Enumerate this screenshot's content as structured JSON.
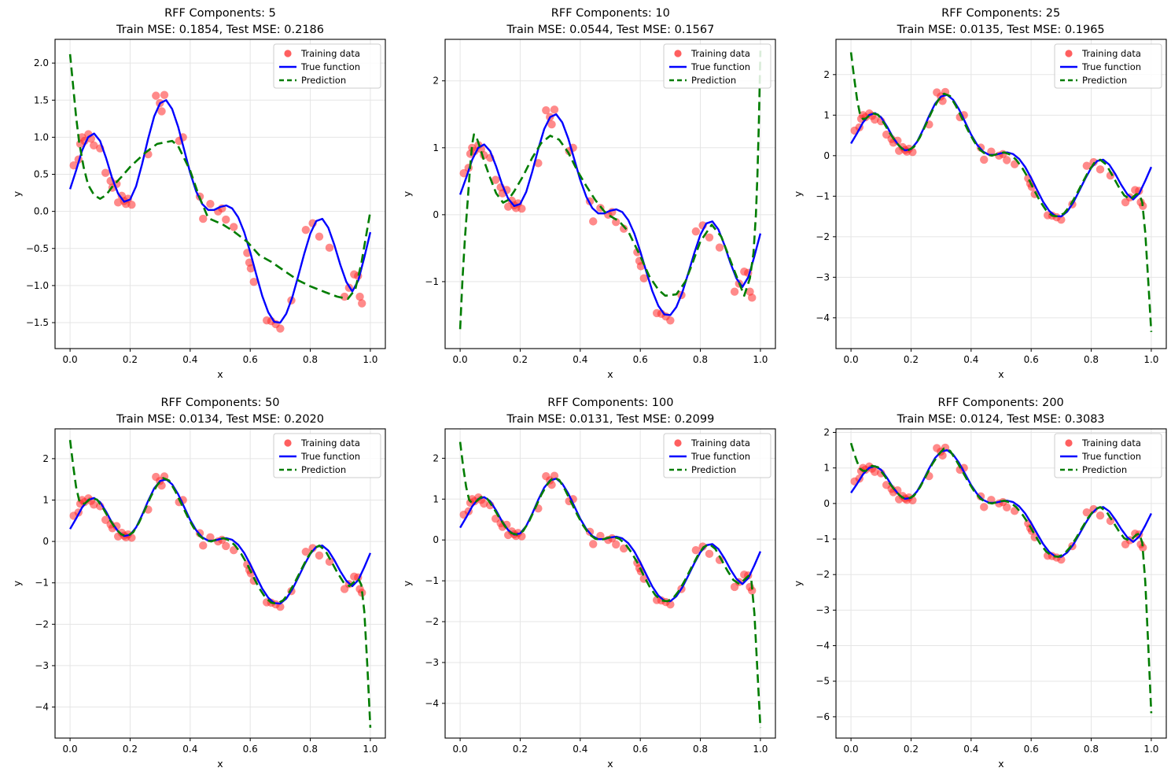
{
  "figure": {
    "background": "#ffffff"
  },
  "colors": {
    "training_data": "#ff2a2a",
    "training_alpha": 0.55,
    "true_function": "#0000ff",
    "prediction": "#007d00",
    "grid": "#e5e5e5",
    "spine": "#000000",
    "legend_border": "#cccccc"
  },
  "legend": {
    "items": [
      {
        "label": "Training data",
        "type": "scatter",
        "color": "#ff2a2a"
      },
      {
        "label": "True function",
        "type": "line",
        "color": "#0000ff"
      },
      {
        "label": "Prediction",
        "type": "dashed",
        "color": "#007d00"
      }
    ]
  },
  "axis_common": {
    "xlabel": "x",
    "ylabel": "y",
    "xlim": [
      -0.05,
      1.05
    ],
    "xticks": [
      0.0,
      0.2,
      0.4,
      0.6,
      0.8,
      1.0
    ],
    "xtick_labels": [
      "0.0",
      "0.2",
      "0.4",
      "0.6",
      "0.8",
      "1.0"
    ]
  },
  "shared_series": {
    "training_data": {
      "name": "Training data",
      "x": [
        0.012,
        0.028,
        0.034,
        0.04,
        0.048,
        0.061,
        0.07,
        0.079,
        0.1,
        0.118,
        0.135,
        0.141,
        0.155,
        0.16,
        0.172,
        0.18,
        0.186,
        0.193,
        0.205,
        0.26,
        0.286,
        0.299,
        0.305,
        0.314,
        0.363,
        0.376,
        0.432,
        0.443,
        0.467,
        0.493,
        0.506,
        0.519,
        0.545,
        0.59,
        0.597,
        0.602,
        0.612,
        0.655,
        0.67,
        0.685,
        0.7,
        0.737,
        0.785,
        0.808,
        0.83,
        0.864,
        0.914,
        0.929,
        0.946,
        0.959,
        0.965,
        0.972
      ],
      "y": [
        0.62,
        0.7,
        0.91,
        1.0,
        0.95,
        1.04,
        0.98,
        0.89,
        0.85,
        0.52,
        0.41,
        0.32,
        0.37,
        0.12,
        0.21,
        0.14,
        0.1,
        0.17,
        0.09,
        0.77,
        1.56,
        1.46,
        1.35,
        1.57,
        0.95,
        1.0,
        0.2,
        -0.1,
        0.1,
        0.0,
        0.04,
        -0.11,
        -0.21,
        -0.56,
        -0.69,
        -0.77,
        -0.95,
        -1.47,
        -1.48,
        -1.52,
        -1.58,
        -1.2,
        -0.25,
        -0.16,
        -0.34,
        -0.49,
        -1.15,
        -1.03,
        -0.85,
        -0.87,
        -1.15,
        -1.24
      ]
    },
    "true_function": {
      "name": "True function",
      "x": [
        0.0,
        0.02,
        0.04,
        0.06,
        0.08,
        0.1,
        0.12,
        0.14,
        0.16,
        0.18,
        0.2,
        0.22,
        0.24,
        0.26,
        0.28,
        0.3,
        0.32,
        0.34,
        0.36,
        0.38,
        0.4,
        0.42,
        0.44,
        0.46,
        0.48,
        0.5,
        0.52,
        0.54,
        0.56,
        0.58,
        0.6,
        0.62,
        0.64,
        0.66,
        0.68,
        0.7,
        0.72,
        0.74,
        0.76,
        0.78,
        0.8,
        0.82,
        0.84,
        0.86,
        0.88,
        0.9,
        0.92,
        0.94,
        0.96,
        0.98,
        1.0
      ],
      "y": [
        0.3,
        0.55,
        0.82,
        1.0,
        1.05,
        0.95,
        0.72,
        0.45,
        0.24,
        0.13,
        0.16,
        0.34,
        0.64,
        0.98,
        1.28,
        1.46,
        1.5,
        1.38,
        1.14,
        0.83,
        0.52,
        0.27,
        0.1,
        0.02,
        0.02,
        0.06,
        0.08,
        0.04,
        -0.08,
        -0.28,
        -0.55,
        -0.85,
        -1.14,
        -1.36,
        -1.49,
        -1.5,
        -1.38,
        -1.16,
        -0.87,
        -0.57,
        -0.3,
        -0.13,
        -0.1,
        -0.22,
        -0.45,
        -0.72,
        -0.95,
        -1.08,
        -0.93,
        -0.62,
        -0.28
      ]
    }
  },
  "chart_data": [
    {
      "type": "line",
      "title": "RFF Components: 5",
      "subtitle": "Train MSE: 0.1854, Test MSE: 0.2186",
      "components": 5,
      "train_mse": 0.1854,
      "test_mse": 0.2186,
      "ylim": [
        -1.85,
        2.32
      ],
      "yticks": [
        2.0,
        1.5,
        1.0,
        0.5,
        0.0,
        -0.5,
        -1.0,
        -1.5
      ],
      "ytick_labels": [
        "2.0",
        "1.5",
        "1.0",
        "0.5",
        "0.0",
        "−0.5",
        "−1.0",
        "−1.5"
      ],
      "prediction": {
        "name": "Prediction",
        "x": [
          0.0,
          0.01,
          0.02,
          0.03,
          0.045,
          0.06,
          0.08,
          0.1,
          0.12,
          0.14,
          0.17,
          0.2,
          0.25,
          0.29,
          0.34,
          0.36,
          0.4,
          0.43,
          0.46,
          0.51,
          0.545,
          0.59,
          0.63,
          0.67,
          0.72,
          0.76,
          0.8,
          0.85,
          0.89,
          0.925,
          0.95,
          0.97,
          0.985,
          1.0
        ],
        "y": [
          2.12,
          1.7,
          1.28,
          0.94,
          0.6,
          0.36,
          0.22,
          0.17,
          0.22,
          0.33,
          0.46,
          0.6,
          0.79,
          0.91,
          0.95,
          0.88,
          0.55,
          0.2,
          -0.09,
          -0.18,
          -0.27,
          -0.41,
          -0.59,
          -0.68,
          -0.82,
          -0.93,
          -1.01,
          -1.09,
          -1.15,
          -1.18,
          -1.05,
          -0.7,
          -0.35,
          0.0
        ]
      }
    },
    {
      "type": "line",
      "title": "RFF Components: 10",
      "subtitle": "Train MSE: 0.0544, Test MSE: 0.1567",
      "components": 10,
      "train_mse": 0.0544,
      "test_mse": 0.1567,
      "ylim": [
        -2.0,
        2.62
      ],
      "yticks": [
        2,
        1,
        0,
        -1
      ],
      "ytick_labels": [
        "2",
        "1",
        "0",
        "−1"
      ],
      "prediction": {
        "name": "Prediction",
        "x": [
          0.0,
          0.008,
          0.016,
          0.025,
          0.033,
          0.04,
          0.046,
          0.055,
          0.065,
          0.08,
          0.1,
          0.12,
          0.143,
          0.16,
          0.18,
          0.21,
          0.24,
          0.27,
          0.3,
          0.33,
          0.36,
          0.39,
          0.42,
          0.45,
          0.48,
          0.5,
          0.53,
          0.56,
          0.6,
          0.63,
          0.66,
          0.683,
          0.72,
          0.75,
          0.77,
          0.8,
          0.838,
          0.87,
          0.91,
          0.946,
          0.965,
          0.977,
          0.985,
          0.99,
          0.995,
          1.0
        ],
        "y": [
          -1.71,
          -0.95,
          -0.35,
          0.2,
          0.7,
          1.05,
          1.2,
          1.15,
          1.02,
          0.8,
          0.55,
          0.32,
          0.18,
          0.22,
          0.35,
          0.58,
          0.85,
          1.07,
          1.18,
          1.12,
          0.93,
          0.66,
          0.43,
          0.22,
          0.05,
          -0.02,
          -0.1,
          -0.25,
          -0.62,
          -0.92,
          -1.12,
          -1.21,
          -1.19,
          -1.0,
          -0.77,
          -0.4,
          -0.15,
          -0.33,
          -0.8,
          -1.21,
          -0.95,
          -0.57,
          0.0,
          0.58,
          1.4,
          2.45
        ]
      }
    },
    {
      "type": "line",
      "title": "RFF Components: 25",
      "subtitle": "Train MSE: 0.0135, Test MSE: 0.1965",
      "components": 25,
      "train_mse": 0.0135,
      "test_mse": 0.1965,
      "ylim": [
        -4.76,
        2.87
      ],
      "yticks": [
        2,
        1,
        0,
        -1,
        -2,
        -3,
        -4
      ],
      "ytick_labels": [
        "2",
        "1",
        "0",
        "−1",
        "−2",
        "−3",
        "−4"
      ],
      "prediction": {
        "name": "Prediction",
        "x": [
          0.0,
          0.01,
          0.02,
          0.03,
          0.04,
          0.05,
          0.07,
          0.09,
          0.11,
          0.13,
          0.15,
          0.17,
          0.19,
          0.21,
          0.23,
          0.25,
          0.27,
          0.29,
          0.31,
          0.33,
          0.35,
          0.37,
          0.39,
          0.41,
          0.43,
          0.45,
          0.47,
          0.49,
          0.51,
          0.53,
          0.55,
          0.57,
          0.59,
          0.61,
          0.63,
          0.65,
          0.67,
          0.69,
          0.71,
          0.73,
          0.75,
          0.77,
          0.79,
          0.81,
          0.83,
          0.85,
          0.87,
          0.89,
          0.91,
          0.93,
          0.95,
          0.96,
          0.97,
          0.98,
          0.99,
          1.0
        ],
        "y": [
          2.55,
          1.95,
          1.4,
          1.02,
          0.9,
          0.92,
          1.05,
          1.01,
          0.8,
          0.55,
          0.33,
          0.17,
          0.13,
          0.22,
          0.46,
          0.78,
          1.1,
          1.36,
          1.53,
          1.47,
          1.22,
          0.92,
          0.62,
          0.35,
          0.14,
          0.03,
          0.0,
          0.05,
          0.08,
          0.03,
          -0.1,
          -0.3,
          -0.55,
          -0.85,
          -1.13,
          -1.35,
          -1.48,
          -1.5,
          -1.42,
          -1.23,
          -0.97,
          -0.68,
          -0.4,
          -0.18,
          -0.1,
          -0.22,
          -0.48,
          -0.75,
          -0.98,
          -1.08,
          -0.95,
          -0.95,
          -1.15,
          -1.9,
          -3.1,
          -4.35
        ]
      }
    },
    {
      "type": "line",
      "title": "RFF Components: 50",
      "subtitle": "Train MSE: 0.0134, Test MSE: 0.2020",
      "components": 50,
      "train_mse": 0.0134,
      "test_mse": 0.202,
      "ylim": [
        -4.75,
        2.72
      ],
      "yticks": [
        2,
        1,
        0,
        -1,
        -2,
        -3,
        -4
      ],
      "ytick_labels": [
        "2",
        "1",
        "0",
        "−1",
        "−2",
        "−3",
        "−4"
      ],
      "prediction": {
        "name": "Prediction",
        "x": [
          0.0,
          0.01,
          0.02,
          0.03,
          0.04,
          0.05,
          0.07,
          0.09,
          0.11,
          0.13,
          0.15,
          0.17,
          0.19,
          0.21,
          0.23,
          0.25,
          0.27,
          0.29,
          0.31,
          0.33,
          0.35,
          0.37,
          0.39,
          0.41,
          0.43,
          0.45,
          0.47,
          0.49,
          0.51,
          0.53,
          0.55,
          0.57,
          0.59,
          0.61,
          0.63,
          0.65,
          0.67,
          0.69,
          0.71,
          0.73,
          0.75,
          0.77,
          0.79,
          0.81,
          0.83,
          0.85,
          0.87,
          0.89,
          0.91,
          0.93,
          0.95,
          0.96,
          0.97,
          0.98,
          0.99,
          1.0
        ],
        "y": [
          2.45,
          1.85,
          1.32,
          1.0,
          0.9,
          0.92,
          1.05,
          1.01,
          0.8,
          0.55,
          0.33,
          0.17,
          0.13,
          0.22,
          0.46,
          0.78,
          1.1,
          1.36,
          1.53,
          1.47,
          1.22,
          0.92,
          0.62,
          0.35,
          0.14,
          0.03,
          0.0,
          0.05,
          0.08,
          0.03,
          -0.1,
          -0.3,
          -0.55,
          -0.85,
          -1.13,
          -1.35,
          -1.48,
          -1.5,
          -1.42,
          -1.23,
          -0.97,
          -0.68,
          -0.4,
          -0.18,
          -0.1,
          -0.22,
          -0.48,
          -0.75,
          -0.98,
          -1.08,
          -0.95,
          -0.9,
          -1.05,
          -1.7,
          -3.0,
          -4.5
        ]
      }
    },
    {
      "type": "line",
      "title": "RFF Components: 100",
      "subtitle": "Train MSE: 0.0131, Test MSE: 0.2099",
      "components": 100,
      "train_mse": 0.0131,
      "test_mse": 0.2099,
      "ylim": [
        -4.85,
        2.72
      ],
      "yticks": [
        2,
        1,
        0,
        -1,
        -2,
        -3,
        -4
      ],
      "ytick_labels": [
        "2",
        "1",
        "0",
        "−1",
        "−2",
        "−3",
        "−4"
      ],
      "prediction": {
        "name": "Prediction",
        "x": [
          0.0,
          0.01,
          0.02,
          0.03,
          0.04,
          0.05,
          0.07,
          0.09,
          0.11,
          0.13,
          0.15,
          0.17,
          0.19,
          0.21,
          0.23,
          0.25,
          0.27,
          0.29,
          0.31,
          0.33,
          0.35,
          0.37,
          0.39,
          0.41,
          0.43,
          0.45,
          0.47,
          0.49,
          0.51,
          0.53,
          0.55,
          0.57,
          0.59,
          0.61,
          0.63,
          0.65,
          0.67,
          0.69,
          0.71,
          0.73,
          0.75,
          0.77,
          0.79,
          0.81,
          0.83,
          0.85,
          0.87,
          0.89,
          0.91,
          0.93,
          0.95,
          0.96,
          0.97,
          0.98,
          0.99,
          1.0
        ],
        "y": [
          2.4,
          1.8,
          1.3,
          0.98,
          0.9,
          0.92,
          1.05,
          1.01,
          0.8,
          0.55,
          0.33,
          0.17,
          0.13,
          0.22,
          0.46,
          0.78,
          1.1,
          1.36,
          1.53,
          1.47,
          1.22,
          0.92,
          0.62,
          0.35,
          0.14,
          0.03,
          0.0,
          0.05,
          0.08,
          0.03,
          -0.1,
          -0.3,
          -0.55,
          -0.85,
          -1.13,
          -1.35,
          -1.48,
          -1.5,
          -1.42,
          -1.23,
          -0.97,
          -0.68,
          -0.4,
          -0.18,
          -0.1,
          -0.22,
          -0.48,
          -0.75,
          -0.98,
          -1.08,
          -0.95,
          -0.88,
          -1.0,
          -1.8,
          -3.2,
          -4.6
        ]
      }
    },
    {
      "type": "line",
      "title": "RFF Components: 200",
      "subtitle": "Train MSE: 0.0124, Test MSE: 0.3083",
      "components": 200,
      "train_mse": 0.0124,
      "test_mse": 0.3083,
      "ylim": [
        -6.6,
        2.1
      ],
      "yticks": [
        2,
        1,
        0,
        -1,
        -2,
        -3,
        -4,
        -5,
        -6
      ],
      "ytick_labels": [
        "2",
        "1",
        "0",
        "−1",
        "−2",
        "−3",
        "−4",
        "−5",
        "−6"
      ],
      "prediction": {
        "name": "Prediction",
        "x": [
          0.0,
          0.01,
          0.02,
          0.03,
          0.04,
          0.05,
          0.07,
          0.09,
          0.11,
          0.13,
          0.15,
          0.17,
          0.19,
          0.21,
          0.23,
          0.25,
          0.27,
          0.29,
          0.31,
          0.33,
          0.35,
          0.37,
          0.39,
          0.41,
          0.43,
          0.45,
          0.47,
          0.49,
          0.51,
          0.53,
          0.55,
          0.57,
          0.59,
          0.61,
          0.63,
          0.65,
          0.67,
          0.69,
          0.71,
          0.73,
          0.75,
          0.77,
          0.79,
          0.81,
          0.83,
          0.85,
          0.87,
          0.89,
          0.91,
          0.93,
          0.95,
          0.96,
          0.97,
          0.98,
          0.99,
          1.0
        ],
        "y": [
          1.7,
          1.42,
          1.18,
          0.98,
          0.92,
          0.92,
          1.06,
          1.02,
          0.8,
          0.55,
          0.33,
          0.17,
          0.13,
          0.22,
          0.46,
          0.78,
          1.1,
          1.36,
          1.55,
          1.48,
          1.22,
          0.92,
          0.62,
          0.35,
          0.14,
          0.03,
          0.0,
          0.05,
          0.08,
          0.03,
          -0.1,
          -0.3,
          -0.55,
          -0.85,
          -1.13,
          -1.35,
          -1.48,
          -1.5,
          -1.42,
          -1.23,
          -0.97,
          -0.68,
          -0.4,
          -0.18,
          -0.1,
          -0.22,
          -0.48,
          -0.75,
          -0.98,
          -1.05,
          -0.88,
          -0.85,
          -1.1,
          -2.2,
          -4.0,
          -5.9
        ]
      }
    }
  ]
}
